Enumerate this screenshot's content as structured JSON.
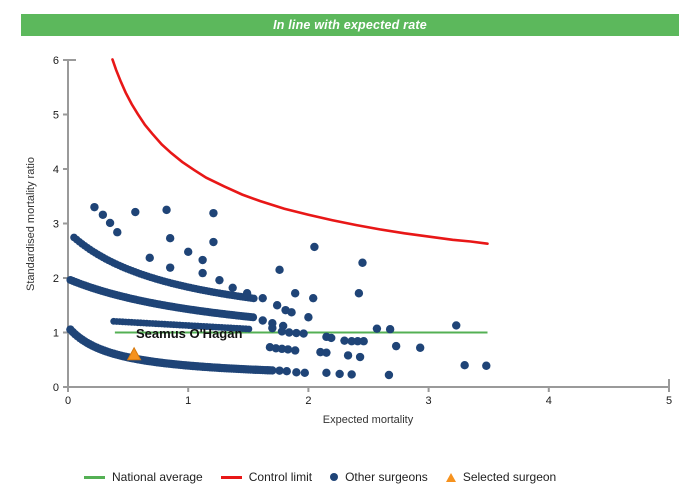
{
  "header": {
    "label": "In line with expected rate"
  },
  "colors": {
    "header_bg": "#5cb85c",
    "header_text": "#ffffff",
    "national_average": "#54b054",
    "control_limit": "#e81717",
    "other_surgeons": "#1f4477",
    "selected_surgeon": "#f6921e",
    "selected_surgeon_border": "#d5790f",
    "axis": "#9a9a9a",
    "tick_text": "#1a1a1a"
  },
  "chart_data": {
    "type": "scatter",
    "title": "",
    "xlabel": "Expected mortality",
    "ylabel": "Standardised mortality ratio",
    "xlim": [
      0,
      5
    ],
    "ylim": [
      0,
      6
    ],
    "x_ticks": [
      0,
      1,
      2,
      3,
      4,
      5
    ],
    "y_ticks": [
      0,
      1,
      2,
      3,
      4,
      5,
      6
    ],
    "grid": false,
    "legend_position": "bottom",
    "national_average": {
      "value": 1.0,
      "x_start": 0.39,
      "x_end": 3.49
    },
    "control_limit": {
      "points": [
        [
          0.37,
          6.01
        ],
        [
          0.4,
          5.82
        ],
        [
          0.44,
          5.6
        ],
        [
          0.48,
          5.4
        ],
        [
          0.53,
          5.19
        ],
        [
          0.58,
          5.01
        ],
        [
          0.64,
          4.81
        ],
        [
          0.7,
          4.65
        ],
        [
          0.78,
          4.45
        ],
        [
          0.86,
          4.29
        ],
        [
          0.95,
          4.13
        ],
        [
          1.05,
          3.98
        ],
        [
          1.15,
          3.84
        ],
        [
          1.3,
          3.68
        ],
        [
          1.45,
          3.53
        ],
        [
          1.6,
          3.41
        ],
        [
          1.8,
          3.27
        ],
        [
          2.0,
          3.16
        ],
        [
          2.2,
          3.06
        ],
        [
          2.4,
          2.97
        ],
        [
          2.6,
          2.89
        ],
        [
          2.8,
          2.82
        ],
        [
          3.0,
          2.76
        ],
        [
          3.2,
          2.7
        ],
        [
          3.35,
          2.67
        ],
        [
          3.49,
          2.63
        ]
      ]
    },
    "selected_surgeon": {
      "name": "Seamus O'Hagan",
      "x": 0.55,
      "y": 0.6
    },
    "other_surgeons": {
      "dense_bands": [
        {
          "type": "hyperbolic",
          "c": 0.13,
          "a": 0.36,
          "b": 0.37,
          "x0": 0.02,
          "x1": 1.7,
          "step": 0.02,
          "r": 4.2
        },
        {
          "type": "hyperbolic",
          "c": 0.6,
          "a": 2.06,
          "b": 1.49,
          "x0": 0.02,
          "x1": 1.55,
          "step": 0.02,
          "r": 4.0
        },
        {
          "type": "linear",
          "k": 1.253,
          "m": -0.125,
          "x0": 0.38,
          "x1": 1.52,
          "step": 0.025,
          "r": 3.4
        },
        {
          "type": "hyperbolic",
          "c": 0.9,
          "a": 1.79,
          "b": 0.92,
          "x0": 0.05,
          "x1": 1.55,
          "step": 0.022,
          "r": 3.8
        }
      ],
      "points": [
        [
          0.22,
          3.3
        ],
        [
          0.29,
          3.16
        ],
        [
          0.35,
          3.01
        ],
        [
          0.41,
          2.84
        ],
        [
          0.56,
          3.21
        ],
        [
          0.82,
          3.25
        ],
        [
          1.21,
          3.19
        ],
        [
          0.85,
          2.73
        ],
        [
          1.21,
          2.66
        ],
        [
          1.0,
          2.48
        ],
        [
          1.12,
          2.33
        ],
        [
          0.68,
          2.37
        ],
        [
          0.85,
          2.19
        ],
        [
          1.12,
          2.09
        ],
        [
          1.26,
          1.96
        ],
        [
          1.37,
          1.82
        ],
        [
          1.49,
          1.72
        ],
        [
          1.62,
          1.63
        ],
        [
          1.74,
          1.5
        ],
        [
          1.76,
          2.15
        ],
        [
          2.05,
          2.57
        ],
        [
          2.45,
          2.28
        ],
        [
          1.89,
          1.72
        ],
        [
          2.04,
          1.63
        ],
        [
          2.42,
          1.72
        ],
        [
          1.81,
          1.41
        ],
        [
          1.86,
          1.37
        ],
        [
          2.0,
          1.28
        ],
        [
          3.23,
          1.13
        ],
        [
          1.7,
          1.08
        ],
        [
          1.78,
          1.02
        ],
        [
          1.84,
          1.0
        ],
        [
          1.9,
          0.99
        ],
        [
          1.96,
          0.98
        ],
        [
          2.57,
          1.07
        ],
        [
          2.68,
          1.06
        ],
        [
          1.62,
          1.22
        ],
        [
          1.7,
          1.17
        ],
        [
          1.79,
          1.12
        ],
        [
          2.15,
          0.92
        ],
        [
          2.19,
          0.9
        ],
        [
          2.3,
          0.85
        ],
        [
          2.36,
          0.84
        ],
        [
          2.41,
          0.84
        ],
        [
          2.46,
          0.84
        ],
        [
          1.68,
          0.73
        ],
        [
          1.73,
          0.71
        ],
        [
          1.78,
          0.7
        ],
        [
          1.83,
          0.69
        ],
        [
          1.89,
          0.67
        ],
        [
          2.73,
          0.75
        ],
        [
          2.93,
          0.72
        ],
        [
          2.1,
          0.64
        ],
        [
          2.15,
          0.63
        ],
        [
          2.33,
          0.58
        ],
        [
          2.43,
          0.55
        ],
        [
          1.76,
          0.3
        ],
        [
          1.82,
          0.29
        ],
        [
          1.9,
          0.27
        ],
        [
          1.97,
          0.26
        ],
        [
          2.15,
          0.26
        ],
        [
          2.26,
          0.24
        ],
        [
          2.36,
          0.23
        ],
        [
          2.67,
          0.22
        ],
        [
          3.3,
          0.4
        ],
        [
          3.48,
          0.39
        ]
      ]
    }
  },
  "legend": {
    "items": [
      {
        "label": "National average",
        "marker": "line",
        "color": "#54b054"
      },
      {
        "label": "Control limit",
        "marker": "line",
        "color": "#e81717"
      },
      {
        "label": "Other surgeons",
        "marker": "dot",
        "color": "#1f4477"
      },
      {
        "label": "Selected surgeon",
        "marker": "triangle",
        "color": "#f6921e"
      }
    ]
  }
}
